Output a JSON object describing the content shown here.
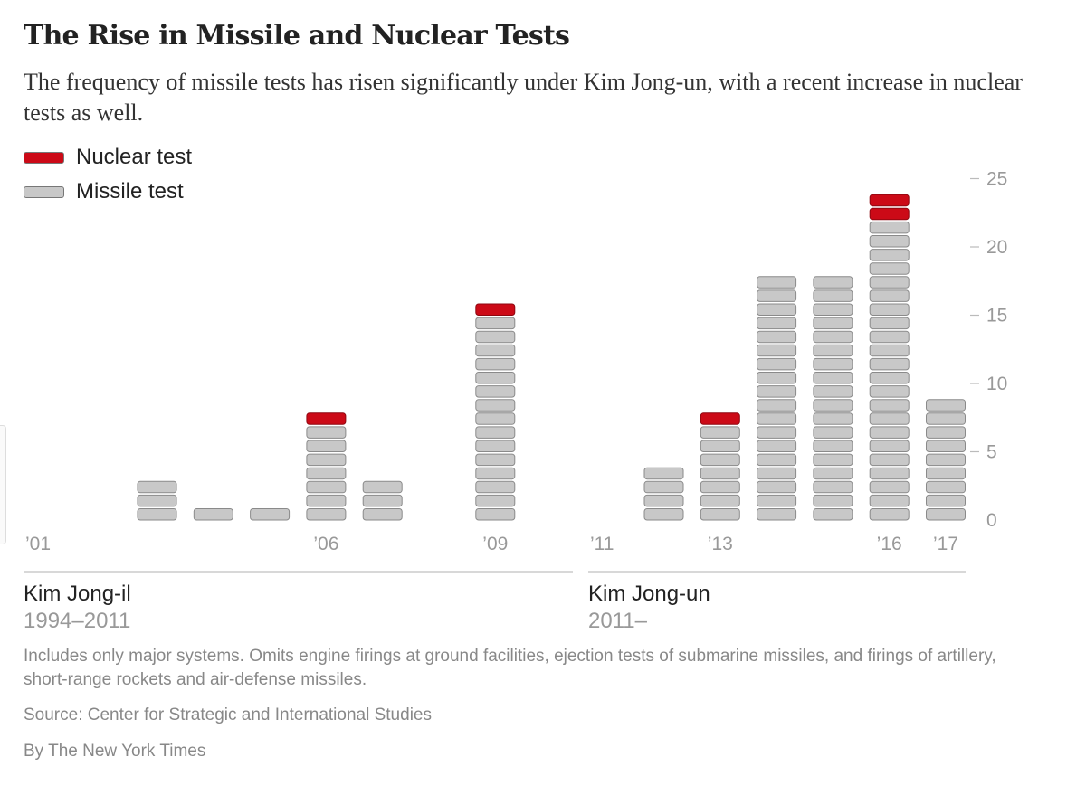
{
  "title": "The Rise in Missile and Nuclear Tests",
  "subtitle": "The frequency of missile tests has risen significantly under Kim Jong-un, with a recent increase in nuclear tests as well.",
  "legend": {
    "nuclear": {
      "label": "Nuclear test",
      "color": "#cc0a17"
    },
    "missile": {
      "label": "Missile test",
      "color": "#c8c8c8"
    }
  },
  "eras": {
    "kim_jong_il": {
      "name": "Kim Jong-il",
      "years": "1994–2011"
    },
    "kim_jong_un": {
      "name": "Kim Jong-un",
      "years": "2011–"
    }
  },
  "chart_data": {
    "type": "bar",
    "stacked": true,
    "title": "The Rise in Missile and Nuclear Tests",
    "ylim": [
      0,
      25
    ],
    "y_ticks": [
      0,
      5,
      10,
      15,
      20,
      25
    ],
    "y_tick_labels": [
      "0",
      "5",
      "10",
      "15",
      "20",
      "25"
    ],
    "unit_blocks": true,
    "panels": [
      {
        "era": "Kim Jong-il",
        "years": [
          2001,
          2002,
          2003,
          2004,
          2005,
          2006,
          2007,
          2008,
          2009,
          2010
        ],
        "x_tick_labels": [
          {
            "year": 2001,
            "label": "’01"
          },
          {
            "year": 2006,
            "label": "’06"
          },
          {
            "year": 2009,
            "label": "’09"
          }
        ]
      },
      {
        "era": "Kim Jong-un",
        "years": [
          2011,
          2012,
          2013,
          2014,
          2015,
          2016,
          2017
        ],
        "x_tick_labels": [
          {
            "year": 2011,
            "label": "’11"
          },
          {
            "year": 2013,
            "label": "’13"
          },
          {
            "year": 2016,
            "label": "’16"
          },
          {
            "year": 2017,
            "label": "’17"
          }
        ]
      }
    ],
    "series": [
      {
        "name": "Missile test",
        "color": "#c8c8c8",
        "x": [
          2001,
          2002,
          2003,
          2004,
          2005,
          2006,
          2007,
          2008,
          2009,
          2010,
          2011,
          2012,
          2013,
          2014,
          2015,
          2016,
          2017
        ],
        "values": [
          0,
          0,
          3,
          1,
          1,
          7,
          3,
          0,
          15,
          0,
          0,
          4,
          7,
          18,
          18,
          22,
          9
        ]
      },
      {
        "name": "Nuclear test",
        "color": "#cc0a17",
        "x": [
          2001,
          2002,
          2003,
          2004,
          2005,
          2006,
          2007,
          2008,
          2009,
          2010,
          2011,
          2012,
          2013,
          2014,
          2015,
          2016,
          2017
        ],
        "values": [
          0,
          0,
          0,
          0,
          0,
          1,
          0,
          0,
          1,
          0,
          0,
          0,
          1,
          0,
          0,
          2,
          0
        ]
      }
    ]
  },
  "note": "Includes only major systems. Omits engine firings at ground facilities, ejection tests of submarine missiles, and firings of artillery, short-range rockets and air-defense missiles.",
  "source": "Source: Center for Strategic and International Studies",
  "credit": "By The New York Times"
}
